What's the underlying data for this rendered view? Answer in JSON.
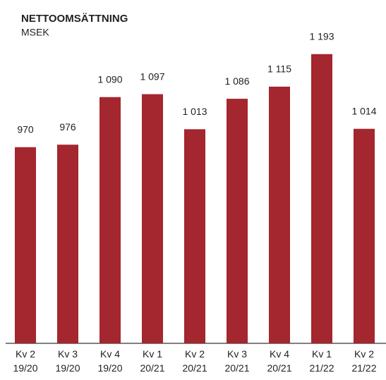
{
  "chart_data": {
    "type": "bar",
    "title": "NETTOOMSÄTTNING",
    "subtitle": "MSEK",
    "categories": [
      "Kv 2\n19/20",
      "Kv 3\n19/20",
      "Kv 4\n19/20",
      "Kv 1\n20/21",
      "Kv 2\n20/21",
      "Kv 3\n20/21",
      "Kv 4\n20/21",
      "Kv 1\n21/22",
      "Kv 2\n21/22"
    ],
    "values": [
      970,
      976,
      1090,
      1097,
      1013,
      1086,
      1115,
      1193,
      1014
    ],
    "value_labels": [
      "970",
      "976",
      "1 090",
      "1 097",
      "1 013",
      "1 086",
      "1 115",
      "1 193",
      "1 014"
    ],
    "color": "#a4262e",
    "ylim": [
      500,
      1250
    ]
  }
}
